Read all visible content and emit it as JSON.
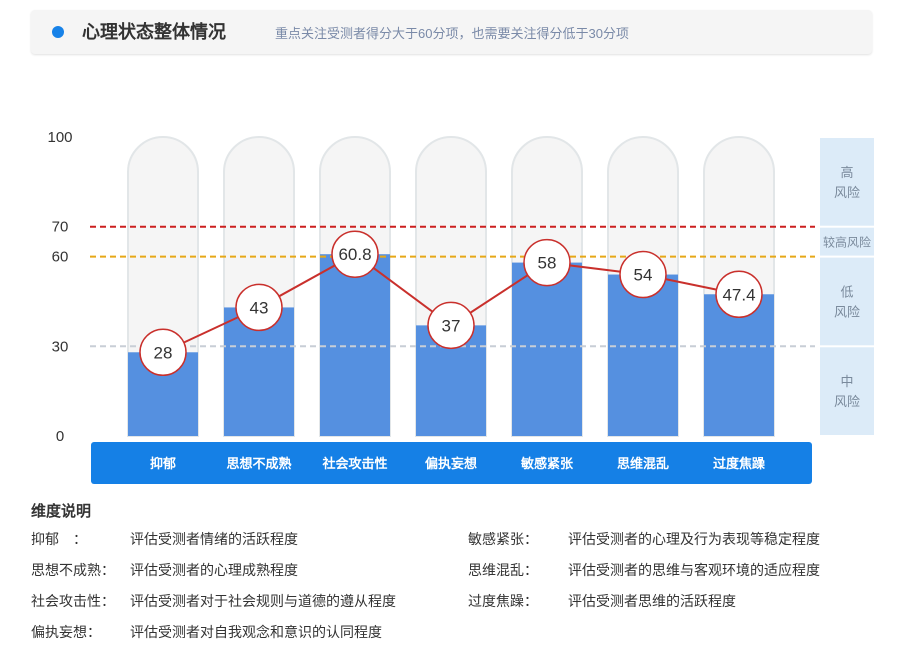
{
  "header": {
    "title": "心理状态整体情况",
    "subtitle": "重点关注受测者得分大于60分项，也需要关注得分低于30分项"
  },
  "colors": {
    "accent": "#1782e8",
    "bar": "#5590e0",
    "capsule": "#f5f5f5",
    "line": "#c9302c",
    "high_threshold": "#cc1f1f",
    "mid_threshold": "#e6a817",
    "low_threshold": "#c8ced6",
    "risk_panel": "#dcebf8",
    "category_band": "#1580e6"
  },
  "chart_data": {
    "type": "bar",
    "categories": [
      "抑郁",
      "思想不成熟",
      "社会攻击性",
      "偏执妄想",
      "敏感紧张",
      "思维混乱",
      "过度焦躁"
    ],
    "values": [
      28,
      43,
      60.8,
      37,
      58,
      54,
      47.4
    ],
    "value_labels": [
      "28",
      "43",
      "60.8",
      "37",
      "58",
      "54",
      "47.4"
    ],
    "ylim": [
      0,
      100
    ],
    "yticks": [
      "0",
      "30",
      "60",
      "70",
      "100"
    ],
    "thresholds": [
      {
        "value": 70,
        "style": "dashed",
        "color": "#cc1f1f"
      },
      {
        "value": 60,
        "style": "dashed",
        "color": "#e6a817"
      },
      {
        "value": 30,
        "style": "dashed",
        "color": "#c8ced6"
      }
    ],
    "risk_bands": [
      {
        "label": [
          "高",
          "风险"
        ],
        "from": 70,
        "to": 100
      },
      {
        "label": [
          "较高风险"
        ],
        "from": 60,
        "to": 70
      },
      {
        "label": [
          "低",
          "风险"
        ],
        "from": 30,
        "to": 60
      },
      {
        "label": [
          "中",
          "风险"
        ],
        "from": 0,
        "to": 30
      }
    ]
  },
  "legend": {
    "title": "维度说明",
    "items": [
      {
        "term": "抑郁　：",
        "desc": "评估受测者情绪的活跃程度"
      },
      {
        "term": "思想不成熟：",
        "desc": "评估受测者的心理成熟程度"
      },
      {
        "term": "社会攻击性：",
        "desc": "评估受测者对于社会规则与道德的遵从程度"
      },
      {
        "term": "偏执妄想：",
        "desc": "评估受测者对自我观念和意识的认同程度"
      },
      {
        "term": "敏感紧张：",
        "desc": "评估受测者的心理及行为表现等稳定程度"
      },
      {
        "term": "思维混乱：",
        "desc": "评估受测者的思维与客观环境的适应程度"
      },
      {
        "term": "过度焦躁：",
        "desc": "评估受测者思维的活跃程度"
      }
    ]
  }
}
